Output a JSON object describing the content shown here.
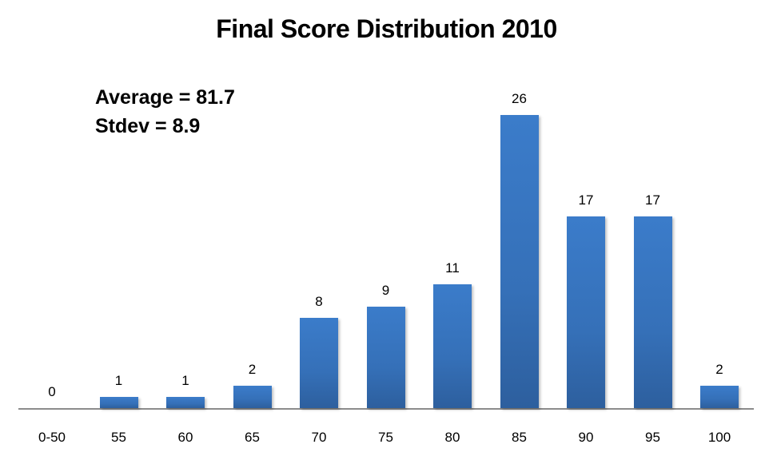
{
  "chart_data": {
    "type": "bar",
    "title": "Final Score Distribution 2010",
    "xlabel": "",
    "ylabel": "",
    "categories": [
      "0-50",
      "55",
      "60",
      "65",
      "70",
      "75",
      "80",
      "85",
      "90",
      "95",
      "100"
    ],
    "values": [
      0,
      1,
      1,
      2,
      8,
      9,
      11,
      26,
      17,
      17,
      2
    ],
    "data_labels": true,
    "grid": false,
    "legend": null,
    "annotations": [
      "Average = 81.7",
      "Stdev = 8.9"
    ],
    "ylim": [
      0,
      26
    ],
    "bar_color": "#3a78c6"
  },
  "title": "Final Score Distribution 2010",
  "stats": {
    "average": "Average = 81.7",
    "stdev": "Stdev = 8.9"
  },
  "bars": [
    {
      "category": "0-50",
      "value": "0"
    },
    {
      "category": "55",
      "value": "1"
    },
    {
      "category": "60",
      "value": "1"
    },
    {
      "category": "65",
      "value": "2"
    },
    {
      "category": "70",
      "value": "8"
    },
    {
      "category": "75",
      "value": "9"
    },
    {
      "category": "80",
      "value": "11"
    },
    {
      "category": "85",
      "value": "26"
    },
    {
      "category": "90",
      "value": "17"
    },
    {
      "category": "95",
      "value": "17"
    },
    {
      "category": "100",
      "value": "2"
    }
  ]
}
